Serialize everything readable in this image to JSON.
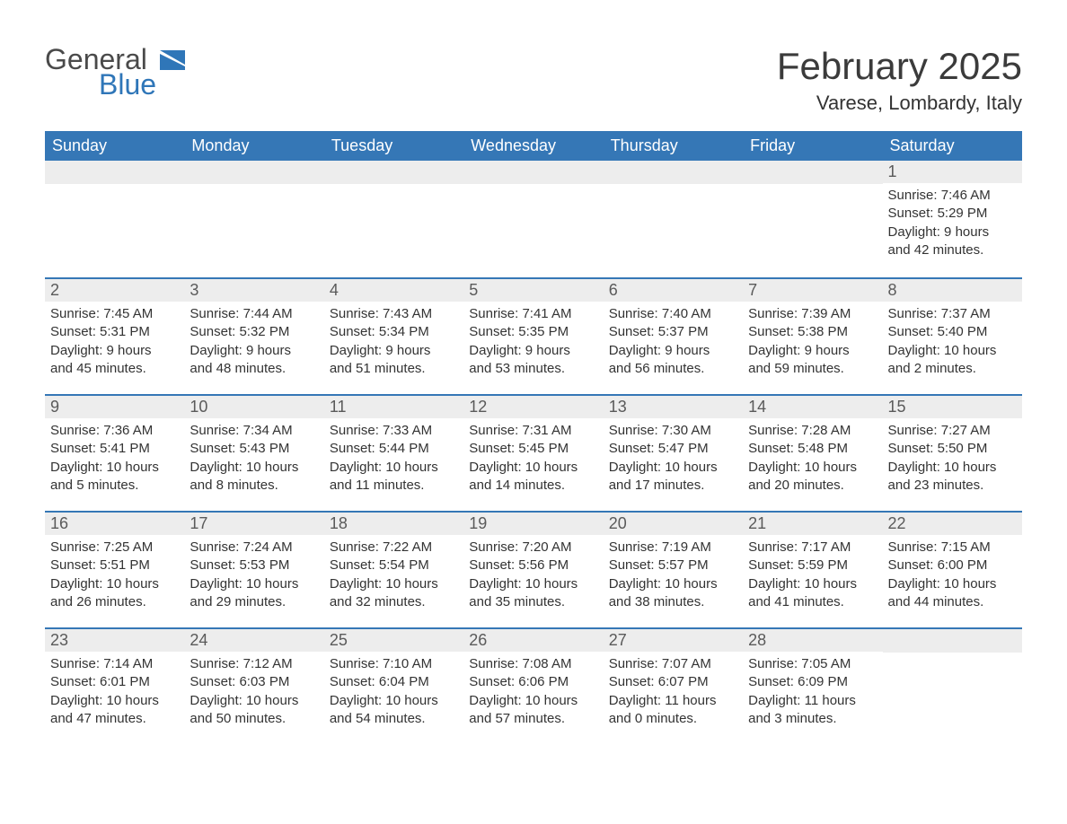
{
  "brand": {
    "name1": "General",
    "name2": "Blue"
  },
  "title": "February 2025",
  "location": "Varese, Lombardy, Italy",
  "colors": {
    "header_bg": "#3577b6",
    "header_text": "#ffffff",
    "daynum_bg": "#ededed",
    "border": "#3577b6",
    "text": "#333333",
    "logo_blue": "#2f76b8"
  },
  "fonts": {
    "title_size": 42,
    "location_size": 22,
    "dayhead_size": 18,
    "body_size": 15
  },
  "dayheads": [
    "Sunday",
    "Monday",
    "Tuesday",
    "Wednesday",
    "Thursday",
    "Friday",
    "Saturday"
  ],
  "weeks": [
    [
      null,
      null,
      null,
      null,
      null,
      null,
      {
        "n": "1",
        "sunrise": "Sunrise: 7:46 AM",
        "sunset": "Sunset: 5:29 PM",
        "daylight1": "Daylight: 9 hours",
        "daylight2": "and 42 minutes."
      }
    ],
    [
      {
        "n": "2",
        "sunrise": "Sunrise: 7:45 AM",
        "sunset": "Sunset: 5:31 PM",
        "daylight1": "Daylight: 9 hours",
        "daylight2": "and 45 minutes."
      },
      {
        "n": "3",
        "sunrise": "Sunrise: 7:44 AM",
        "sunset": "Sunset: 5:32 PM",
        "daylight1": "Daylight: 9 hours",
        "daylight2": "and 48 minutes."
      },
      {
        "n": "4",
        "sunrise": "Sunrise: 7:43 AM",
        "sunset": "Sunset: 5:34 PM",
        "daylight1": "Daylight: 9 hours",
        "daylight2": "and 51 minutes."
      },
      {
        "n": "5",
        "sunrise": "Sunrise: 7:41 AM",
        "sunset": "Sunset: 5:35 PM",
        "daylight1": "Daylight: 9 hours",
        "daylight2": "and 53 minutes."
      },
      {
        "n": "6",
        "sunrise": "Sunrise: 7:40 AM",
        "sunset": "Sunset: 5:37 PM",
        "daylight1": "Daylight: 9 hours",
        "daylight2": "and 56 minutes."
      },
      {
        "n": "7",
        "sunrise": "Sunrise: 7:39 AM",
        "sunset": "Sunset: 5:38 PM",
        "daylight1": "Daylight: 9 hours",
        "daylight2": "and 59 minutes."
      },
      {
        "n": "8",
        "sunrise": "Sunrise: 7:37 AM",
        "sunset": "Sunset: 5:40 PM",
        "daylight1": "Daylight: 10 hours",
        "daylight2": "and 2 minutes."
      }
    ],
    [
      {
        "n": "9",
        "sunrise": "Sunrise: 7:36 AM",
        "sunset": "Sunset: 5:41 PM",
        "daylight1": "Daylight: 10 hours",
        "daylight2": "and 5 minutes."
      },
      {
        "n": "10",
        "sunrise": "Sunrise: 7:34 AM",
        "sunset": "Sunset: 5:43 PM",
        "daylight1": "Daylight: 10 hours",
        "daylight2": "and 8 minutes."
      },
      {
        "n": "11",
        "sunrise": "Sunrise: 7:33 AM",
        "sunset": "Sunset: 5:44 PM",
        "daylight1": "Daylight: 10 hours",
        "daylight2": "and 11 minutes."
      },
      {
        "n": "12",
        "sunrise": "Sunrise: 7:31 AM",
        "sunset": "Sunset: 5:45 PM",
        "daylight1": "Daylight: 10 hours",
        "daylight2": "and 14 minutes."
      },
      {
        "n": "13",
        "sunrise": "Sunrise: 7:30 AM",
        "sunset": "Sunset: 5:47 PM",
        "daylight1": "Daylight: 10 hours",
        "daylight2": "and 17 minutes."
      },
      {
        "n": "14",
        "sunrise": "Sunrise: 7:28 AM",
        "sunset": "Sunset: 5:48 PM",
        "daylight1": "Daylight: 10 hours",
        "daylight2": "and 20 minutes."
      },
      {
        "n": "15",
        "sunrise": "Sunrise: 7:27 AM",
        "sunset": "Sunset: 5:50 PM",
        "daylight1": "Daylight: 10 hours",
        "daylight2": "and 23 minutes."
      }
    ],
    [
      {
        "n": "16",
        "sunrise": "Sunrise: 7:25 AM",
        "sunset": "Sunset: 5:51 PM",
        "daylight1": "Daylight: 10 hours",
        "daylight2": "and 26 minutes."
      },
      {
        "n": "17",
        "sunrise": "Sunrise: 7:24 AM",
        "sunset": "Sunset: 5:53 PM",
        "daylight1": "Daylight: 10 hours",
        "daylight2": "and 29 minutes."
      },
      {
        "n": "18",
        "sunrise": "Sunrise: 7:22 AM",
        "sunset": "Sunset: 5:54 PM",
        "daylight1": "Daylight: 10 hours",
        "daylight2": "and 32 minutes."
      },
      {
        "n": "19",
        "sunrise": "Sunrise: 7:20 AM",
        "sunset": "Sunset: 5:56 PM",
        "daylight1": "Daylight: 10 hours",
        "daylight2": "and 35 minutes."
      },
      {
        "n": "20",
        "sunrise": "Sunrise: 7:19 AM",
        "sunset": "Sunset: 5:57 PM",
        "daylight1": "Daylight: 10 hours",
        "daylight2": "and 38 minutes."
      },
      {
        "n": "21",
        "sunrise": "Sunrise: 7:17 AM",
        "sunset": "Sunset: 5:59 PM",
        "daylight1": "Daylight: 10 hours",
        "daylight2": "and 41 minutes."
      },
      {
        "n": "22",
        "sunrise": "Sunrise: 7:15 AM",
        "sunset": "Sunset: 6:00 PM",
        "daylight1": "Daylight: 10 hours",
        "daylight2": "and 44 minutes."
      }
    ],
    [
      {
        "n": "23",
        "sunrise": "Sunrise: 7:14 AM",
        "sunset": "Sunset: 6:01 PM",
        "daylight1": "Daylight: 10 hours",
        "daylight2": "and 47 minutes."
      },
      {
        "n": "24",
        "sunrise": "Sunrise: 7:12 AM",
        "sunset": "Sunset: 6:03 PM",
        "daylight1": "Daylight: 10 hours",
        "daylight2": "and 50 minutes."
      },
      {
        "n": "25",
        "sunrise": "Sunrise: 7:10 AM",
        "sunset": "Sunset: 6:04 PM",
        "daylight1": "Daylight: 10 hours",
        "daylight2": "and 54 minutes."
      },
      {
        "n": "26",
        "sunrise": "Sunrise: 7:08 AM",
        "sunset": "Sunset: 6:06 PM",
        "daylight1": "Daylight: 10 hours",
        "daylight2": "and 57 minutes."
      },
      {
        "n": "27",
        "sunrise": "Sunrise: 7:07 AM",
        "sunset": "Sunset: 6:07 PM",
        "daylight1": "Daylight: 11 hours",
        "daylight2": "and 0 minutes."
      },
      {
        "n": "28",
        "sunrise": "Sunrise: 7:05 AM",
        "sunset": "Sunset: 6:09 PM",
        "daylight1": "Daylight: 11 hours",
        "daylight2": "and 3 minutes."
      },
      null
    ]
  ]
}
